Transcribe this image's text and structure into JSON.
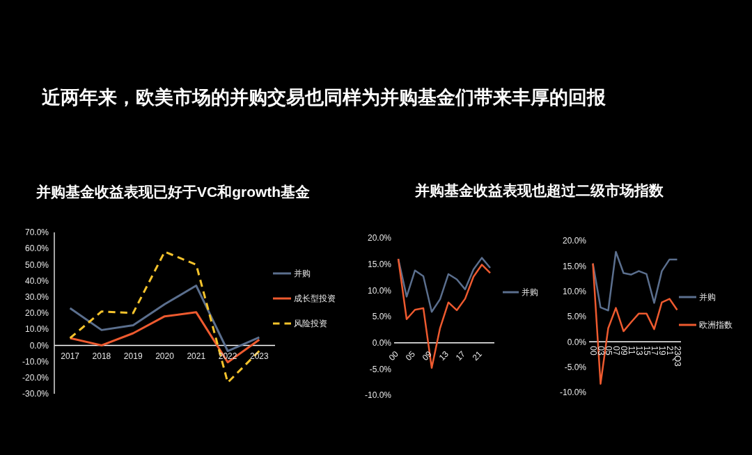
{
  "chart_data": [
    {
      "type": "other",
      "title": "近两年来，欧美市场的并购交易也同样为并购基金们带来丰厚的回报"
    },
    {
      "type": "line",
      "title": "并购基金收益表现已好于VC和growth基金",
      "categories": [
        "2017",
        "2018",
        "2019",
        "2020",
        "2021",
        "2022",
        "2023"
      ],
      "series": [
        {
          "name": "并购",
          "color": "#5b6f8e",
          "values": [
            23,
            9.5,
            12.5,
            25.5,
            37,
            -3.5,
            5
          ]
        },
        {
          "name": "成长型投资",
          "color": "#ee5a2f",
          "values": [
            4.5,
            0,
            7.5,
            18,
            20.5,
            -10.5,
            3.5
          ]
        },
        {
          "name": "风险投资",
          "color": "#f5c32c",
          "line_style": "dashed",
          "values": [
            4.5,
            21,
            20,
            58,
            50,
            -23,
            -3.5
          ]
        }
      ],
      "ylim": [
        -30,
        70
      ],
      "yticks": [
        {
          "value": -30,
          "label": "-30.0%"
        },
        {
          "value": -20,
          "label": "-20.0%"
        },
        {
          "value": -10,
          "label": "-10.0%"
        },
        {
          "value": 0,
          "label": "0.0%"
        },
        {
          "value": 10,
          "label": "10.0%"
        },
        {
          "value": 20,
          "label": "20.0%"
        },
        {
          "value": 30,
          "label": "30.0%"
        },
        {
          "value": 40,
          "label": "40.0%"
        },
        {
          "value": 50,
          "label": "50.0%"
        },
        {
          "value": 60,
          "label": "60.0%"
        },
        {
          "value": 70,
          "label": "70.0%"
        }
      ],
      "legend": "right",
      "marker": "none"
    },
    {
      "type": "line",
      "title": "并购基金收益表现也超过二级市场指数",
      "categories": [
        "00",
        null,
        "05",
        null,
        "09",
        null,
        "13",
        null,
        "17",
        null,
        "21",
        null
      ],
      "series": [
        {
          "name": "并购",
          "color": "#5b6f8e",
          "values": [
            16,
            8.8,
            13.8,
            12.7,
            5.9,
            8.3,
            13.1,
            12.1,
            10.2,
            14,
            16.2,
            14.3
          ]
        },
        {
          "color": "#ee5a2f",
          "values": [
            16,
            4.5,
            6.3,
            6.6,
            -4.8,
            2.8,
            7.7,
            6.2,
            8.4,
            12.6,
            14.9,
            13.3
          ]
        }
      ],
      "ylim": [
        -10,
        20
      ],
      "yticks": [
        {
          "value": -10,
          "label": "-10.0%"
        },
        {
          "value": -5,
          "label": "-5.0%"
        },
        {
          "value": 0,
          "label": "0.0%"
        },
        {
          "value": 5,
          "label": "5.0%"
        },
        {
          "value": 10,
          "label": "10.0%"
        },
        {
          "value": 15,
          "label": "15.0%"
        },
        {
          "value": 20,
          "label": "20.0%"
        }
      ],
      "legend": "right",
      "marker": "none"
    },
    {
      "type": "line",
      "categories": [
        "00",
        "03",
        "05",
        "07",
        "09",
        "11",
        "13",
        "15",
        "17",
        "19",
        "21",
        "23Q3"
      ],
      "series": [
        {
          "name": "并购",
          "color": "#5b6f8e",
          "values": [
            15.5,
            6.8,
            6.2,
            17.8,
            13.6,
            13.3,
            14,
            13.4,
            7.7,
            14,
            16.3,
            16.3
          ]
        },
        {
          "name": "欧洲指数",
          "color": "#ee5a2f",
          "values": [
            15.5,
            -8.3,
            2.7,
            6.7,
            2.1,
            3.9,
            5.6,
            5.6,
            2.5,
            7.8,
            8.5,
            6.3
          ]
        }
      ],
      "ylim": [
        -10,
        20
      ],
      "yticks": [
        {
          "value": -10,
          "label": "-10.0%"
        },
        {
          "value": -5,
          "label": "-5.0%"
        },
        {
          "value": 0,
          "label": "0.0%"
        },
        {
          "value": 5,
          "label": "5.0%"
        },
        {
          "value": 10,
          "label": "10.0%"
        },
        {
          "value": 15,
          "label": "15.0%"
        },
        {
          "value": 20,
          "label": "20.0%"
        }
      ],
      "legend": "right",
      "marker": "none"
    }
  ]
}
